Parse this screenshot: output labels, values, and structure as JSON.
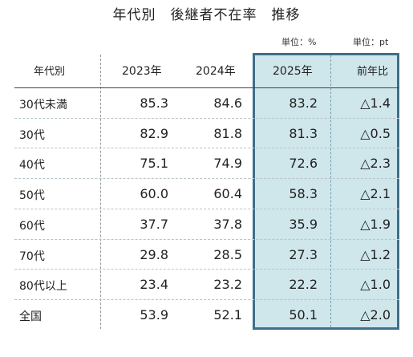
{
  "title": "年代別　後継者不在率　推移",
  "units": {
    "main": "単位：%",
    "diff": "単位：pt"
  },
  "header": {
    "label": "年代別",
    "years": [
      "2023年",
      "2024年",
      "2025年"
    ],
    "diff": "前年比"
  },
  "rows": [
    {
      "label": "30代未満",
      "v2023": "85.3",
      "v2024": "84.6",
      "v2025": "83.2",
      "diff": "△1.4"
    },
    {
      "label": "30代",
      "v2023": "82.9",
      "v2024": "81.8",
      "v2025": "81.3",
      "diff": "△0.5"
    },
    {
      "label": "40代",
      "v2023": "75.1",
      "v2024": "74.9",
      "v2025": "72.6",
      "diff": "△2.3"
    },
    {
      "label": "50代",
      "v2023": "60.0",
      "v2024": "60.4",
      "v2025": "58.3",
      "diff": "△2.1"
    },
    {
      "label": "60代",
      "v2023": "37.7",
      "v2024": "37.8",
      "v2025": "35.9",
      "diff": "△1.9"
    },
    {
      "label": "70代",
      "v2023": "29.8",
      "v2024": "28.5",
      "v2025": "27.3",
      "diff": "△1.2"
    },
    {
      "label": "80代以上",
      "v2023": "23.4",
      "v2024": "23.2",
      "v2025": "22.2",
      "diff": "△1.0"
    },
    {
      "label": "全国",
      "v2023": "53.9",
      "v2024": "52.1",
      "v2025": "50.1",
      "diff": "△2.0"
    }
  ],
  "colors": {
    "highlight_fill": "#cfe6eb",
    "highlight_border": "#3f6f8a"
  }
}
